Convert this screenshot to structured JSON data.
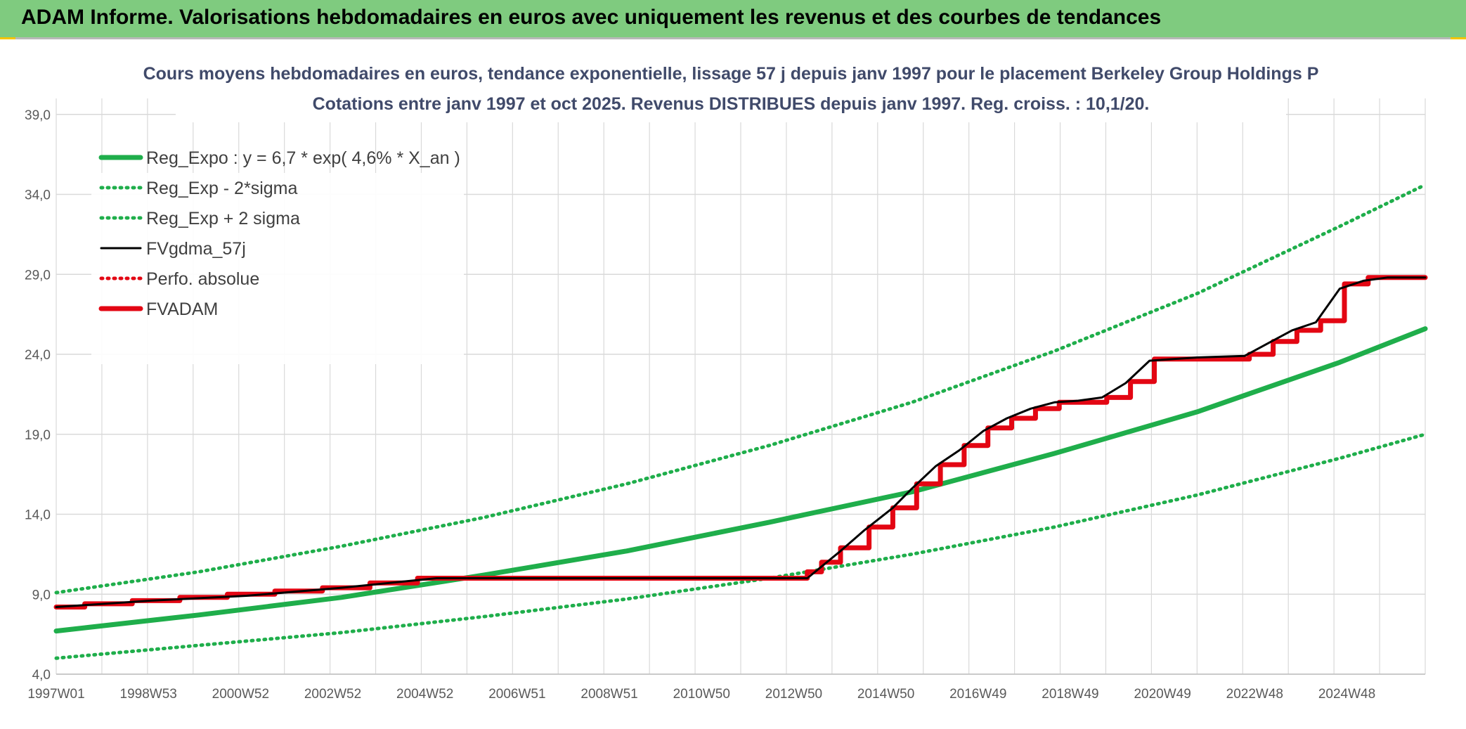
{
  "header": {
    "title": "ADAM Informe. Valorisations hebdomadaires en euros avec uniquement les revenus et des courbes de tendances"
  },
  "chart_data": {
    "type": "line",
    "title_line1": "Cours moyens hebdomadaires en euros, tendance exponentielle, lissage 57 j depuis janv 1997 pour le placement Berkeley Group Holdings P",
    "title_line2": "Cotations entre janv 1997 et oct 2025. Revenus DISTRIBUES depuis janv 1997. Reg. croiss. : 10,1/20.",
    "xlabel": "",
    "ylabel": "",
    "ylim": [
      4.0,
      40.0
    ],
    "xlim": [
      1997.0,
      2025.8
    ],
    "grid": true,
    "legend_position": "top-left",
    "y_ticks": [
      "4,0",
      "9,0",
      "14,0",
      "19,0",
      "24,0",
      "29,0",
      "34,0",
      "39,0"
    ],
    "x_ticks": [
      "1997W01",
      "1998W53",
      "2000W52",
      "2002W52",
      "2004W52",
      "2006W51",
      "2008W51",
      "2010W50",
      "2012W50",
      "2014W50",
      "2016W49",
      "2018W49",
      "2020W49",
      "2022W48",
      "2024W48"
    ],
    "colors": {
      "green": "#1fae4b",
      "black": "#000000",
      "red": "#e30613",
      "grid": "#d9d9d9"
    },
    "series": [
      {
        "name": "Reg_Expo : y = 6,7 * exp( 4,6% *  X_an )",
        "style": "solid-thick",
        "color": "#1fae4b",
        "x": [
          1997.0,
          2000.0,
          2003.0,
          2006.0,
          2009.0,
          2012.0,
          2015.0,
          2018.0,
          2021.0,
          2024.0,
          2025.8
        ],
        "values": [
          6.7,
          7.7,
          8.8,
          10.2,
          11.7,
          13.5,
          15.4,
          17.8,
          20.4,
          23.5,
          25.6
        ]
      },
      {
        "name": "Reg_Exp - 2*sigma",
        "style": "dotted",
        "color": "#1fae4b",
        "x": [
          1997.0,
          2000.0,
          2003.0,
          2006.0,
          2009.0,
          2012.0,
          2015.0,
          2018.0,
          2021.0,
          2024.0,
          2025.8
        ],
        "values": [
          5.0,
          5.8,
          6.6,
          7.6,
          8.7,
          10.0,
          11.5,
          13.2,
          15.2,
          17.5,
          19.0
        ]
      },
      {
        "name": "Reg_Exp + 2 sigma",
        "style": "dotted",
        "color": "#1fae4b",
        "x": [
          1997.0,
          2000.0,
          2003.0,
          2006.0,
          2009.0,
          2012.0,
          2015.0,
          2018.0,
          2021.0,
          2024.0,
          2025.8
        ],
        "values": [
          9.1,
          10.4,
          12.0,
          13.8,
          15.9,
          18.3,
          21.0,
          24.2,
          27.8,
          32.0,
          34.6
        ]
      },
      {
        "name": "FVgdma_57j",
        "style": "solid",
        "color": "#000000",
        "x": [
          1997.0,
          1999.0,
          2001.0,
          2003.0,
          2005.0,
          2007.0,
          2009.0,
          2011.0,
          2012.8,
          2013.5,
          2014.0,
          2014.6,
          2015.0,
          2015.5,
          2016.0,
          2016.5,
          2017.0,
          2017.5,
          2018.0,
          2018.5,
          2019.0,
          2019.5,
          2020.0,
          2021.0,
          2022.0,
          2022.5,
          2023.0,
          2023.5,
          2024.0,
          2024.5,
          2025.0,
          2025.8
        ],
        "values": [
          8.2,
          8.6,
          8.9,
          9.4,
          10.0,
          10.0,
          10.0,
          10.0,
          10.0,
          11.7,
          13.0,
          14.4,
          15.6,
          17.0,
          18.0,
          19.2,
          20.0,
          20.6,
          21.0,
          21.1,
          21.3,
          22.2,
          23.6,
          23.8,
          23.9,
          24.7,
          25.5,
          26.0,
          28.1,
          28.6,
          28.8,
          28.8
        ]
      },
      {
        "name": "Perfo. absolue",
        "style": "dotted",
        "color": "#e30613",
        "x": [],
        "values": []
      },
      {
        "name": "FVADAM",
        "style": "solid-thick",
        "color": "#e30613",
        "x": [
          1997.0,
          1997.6,
          1997.6,
          1998.6,
          1998.6,
          1999.6,
          1999.6,
          2000.6,
          2000.6,
          2001.6,
          2001.6,
          2002.6,
          2002.6,
          2003.6,
          2003.6,
          2004.6,
          2004.6,
          2012.8,
          2012.8,
          2013.1,
          2013.1,
          2013.5,
          2013.5,
          2014.1,
          2014.1,
          2014.6,
          2014.6,
          2015.1,
          2015.1,
          2015.6,
          2015.6,
          2016.1,
          2016.1,
          2016.6,
          2016.6,
          2017.1,
          2017.1,
          2017.6,
          2017.6,
          2018.1,
          2018.1,
          2019.1,
          2019.1,
          2019.6,
          2019.6,
          2020.1,
          2020.1,
          2022.1,
          2022.1,
          2022.6,
          2022.6,
          2023.1,
          2023.1,
          2023.6,
          2023.6,
          2024.1,
          2024.1,
          2024.6,
          2024.6,
          2025.8
        ],
        "values": [
          8.2,
          8.2,
          8.4,
          8.4,
          8.6,
          8.6,
          8.8,
          8.8,
          9.0,
          9.0,
          9.2,
          9.2,
          9.4,
          9.4,
          9.7,
          9.7,
          10.0,
          10.0,
          10.4,
          10.4,
          11.0,
          11.0,
          11.9,
          11.9,
          13.2,
          13.2,
          14.4,
          14.4,
          15.9,
          15.9,
          17.1,
          17.1,
          18.3,
          18.3,
          19.4,
          19.4,
          20.0,
          20.0,
          20.6,
          20.6,
          21.0,
          21.0,
          21.3,
          21.3,
          22.3,
          22.3,
          23.7,
          23.7,
          24.0,
          24.0,
          24.8,
          24.8,
          25.5,
          25.5,
          26.1,
          26.1,
          28.4,
          28.4,
          28.8,
          28.8
        ]
      }
    ]
  }
}
